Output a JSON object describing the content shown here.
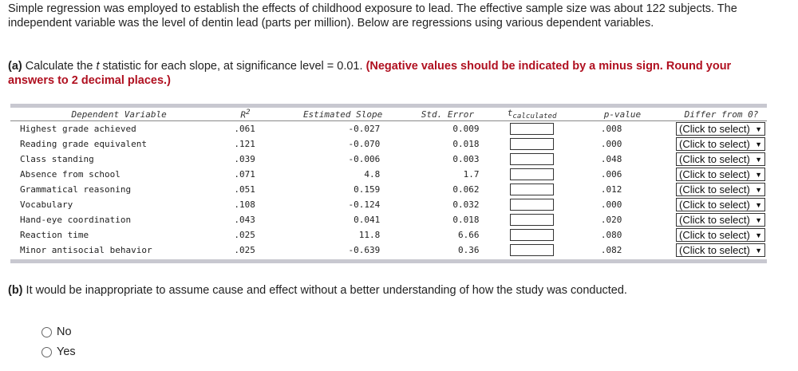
{
  "intro": "Simple regression was employed to establish the effects of childhood exposure to lead. The effective sample size was about 122 subjects. The independent variable was the level of dentin lead (parts per million). Below are regressions using various dependent variables.",
  "part_a": {
    "label": "(a)",
    "text_1": "Calculate the ",
    "t_italic": "t",
    "text_2": " statistic for each slope, at significance level = 0.01. ",
    "instruction": "(Negative values should be indicated by a minus sign. Round your answers to 2 decimal places.)"
  },
  "table": {
    "headers": {
      "variable": "Dependent Variable",
      "r2_base": "R",
      "r2_sup": "2",
      "slope": "Estimated Slope",
      "se": "Std. Error",
      "t_base": "t",
      "t_sub": "calculated",
      "p": "p-value",
      "diff": "Differ from 0?"
    },
    "rows": [
      {
        "var": "Highest grade achieved",
        "r2": ".061",
        "slope": "-0.027",
        "se": "0.009",
        "p": ".008",
        "diff": "(Click to select)"
      },
      {
        "var": "Reading grade equivalent",
        "r2": ".121",
        "slope": "-0.070",
        "se": "0.018",
        "p": ".000",
        "diff": "(Click to select)"
      },
      {
        "var": "Class standing",
        "r2": ".039",
        "slope": "-0.006",
        "se": "0.003",
        "p": ".048",
        "diff": "(Click to select)"
      },
      {
        "var": "Absence from school",
        "r2": ".071",
        "slope": "4.8",
        "se": "1.7",
        "p": ".006",
        "diff": "(Click to select)"
      },
      {
        "var": "Grammatical reasoning",
        "r2": ".051",
        "slope": "0.159",
        "se": "0.062",
        "p": ".012",
        "diff": "(Click to select)"
      },
      {
        "var": "Vocabulary",
        "r2": ".108",
        "slope": "-0.124",
        "se": "0.032",
        "p": ".000",
        "diff": "(Click to select)"
      },
      {
        "var": "Hand-eye coordination",
        "r2": ".043",
        "slope": "0.041",
        "se": "0.018",
        "p": ".020",
        "diff": "(Click to select)"
      },
      {
        "var": "Reaction time",
        "r2": ".025",
        "slope": "11.8",
        "se": "6.66",
        "p": ".080",
        "diff": "(Click to select)"
      },
      {
        "var": "Minor antisocial behavior",
        "r2": ".025",
        "slope": "-0.639",
        "se": "0.36",
        "p": ".082",
        "diff": "(Click to select)"
      }
    ]
  },
  "part_b": {
    "label": "(b)",
    "text": " It would be inappropriate to assume cause and effect without a better understanding of how the study was conducted.",
    "options": [
      "No",
      "Yes"
    ]
  }
}
